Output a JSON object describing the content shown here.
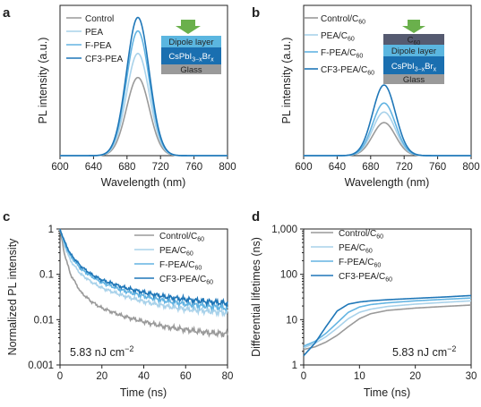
{
  "colors": {
    "control": "#9a9a9a",
    "pea": "#a9d2ea",
    "fpea": "#63b4e2",
    "cf3pea": "#1f77b8",
    "dipole_layer": "#5bb6e0",
    "perovskite": "#1a6fb0",
    "glass": "#9a9a9a",
    "c60": "#555a70",
    "arrow": "#6ab04c"
  },
  "panels": {
    "a": {
      "letter": "a",
      "xlabel": "Wavelength (nm)",
      "ylabel": "PL intensity (a.u.)",
      "xticks": [
        "600",
        "640",
        "680",
        "720",
        "760",
        "800"
      ],
      "legend": [
        "Control",
        "PEA",
        "F-PEA",
        "CF3-PEA"
      ],
      "stack": {
        "top": "Dipole layer",
        "mid_main": "CsPbI",
        "mid_sub": "3−x",
        "mid_main2": "Br",
        "mid_sub2": "x",
        "bottom": "Glass"
      }
    },
    "b": {
      "letter": "b",
      "xlabel": "Wavelength (nm)",
      "ylabel": "PL intensity (a.u.)",
      "xticks": [
        "600",
        "640",
        "680",
        "720",
        "760",
        "800"
      ],
      "legend": [
        {
          "main": "Control/C",
          "sub": "60"
        },
        {
          "main": "PEA/C",
          "sub": "60"
        },
        {
          "main": "F-PEA/C",
          "sub": "60"
        },
        {
          "main": "CF3-PEA/C",
          "sub": "60"
        }
      ],
      "stack": {
        "c60_main": "C",
        "c60_sub": "60",
        "top": "Dipole layer",
        "mid_main": "CsPbI",
        "mid_sub": "3−x",
        "mid_main2": "Br",
        "mid_sub2": "x",
        "bottom": "Glass"
      }
    },
    "c": {
      "letter": "c",
      "xlabel": "Time (ns)",
      "ylabel": "Normalized PL intensity",
      "xticks": [
        "0",
        "20",
        "40",
        "60",
        "80"
      ],
      "yticks": [
        "0.001",
        "0.01",
        "0.1",
        "1"
      ],
      "legend": [
        {
          "main": "Control/C",
          "sub": "60"
        },
        {
          "main": "PEA/C",
          "sub": "60"
        },
        {
          "main": "F-PEA/C",
          "sub": "60"
        },
        {
          "main": "CF3-PEA/C",
          "sub": "60"
        }
      ],
      "fluence_main": "5.83 nJ cm",
      "fluence_sup": "−2"
    },
    "d": {
      "letter": "d",
      "xlabel": "Time (ns)",
      "ylabel": "Differential lifetimes (ns)",
      "xticks": [
        "0",
        "10",
        "20",
        "30"
      ],
      "yticks": [
        "1",
        "10",
        "100",
        "1,000"
      ],
      "legend": [
        {
          "main": "Control/C",
          "sub": "60"
        },
        {
          "main": "PEA/C",
          "sub": "60"
        },
        {
          "main": "F-PEA/C",
          "sub": "60"
        },
        {
          "main": "CF3-PEA/C",
          "sub": "60"
        }
      ],
      "fluence_main": "5.83 nJ cm",
      "fluence_sup": "−2"
    }
  },
  "chart_data": [
    {
      "panel": "a",
      "type": "line",
      "xlabel": "Wavelength (nm)",
      "ylabel": "PL intensity (a.u.)",
      "xlim": [
        600,
        800
      ],
      "peak_wavelength": 693,
      "series": [
        {
          "name": "Control",
          "peak": 0.52,
          "fwhm": 32
        },
        {
          "name": "PEA",
          "peak": 0.68,
          "fwhm": 32
        },
        {
          "name": "F-PEA",
          "peak": 0.83,
          "fwhm": 32
        },
        {
          "name": "CF3-PEA",
          "peak": 0.92,
          "fwhm": 32
        }
      ]
    },
    {
      "panel": "b",
      "type": "line",
      "xlabel": "Wavelength (nm)",
      "ylabel": "PL intensity (a.u.)",
      "xlim": [
        600,
        800
      ],
      "peak_wavelength": 696,
      "series": [
        {
          "name": "Control/C60",
          "peak": 0.22,
          "fwhm": 32
        },
        {
          "name": "PEA/C60",
          "peak": 0.29,
          "fwhm": 32
        },
        {
          "name": "F-PEA/C60",
          "peak": 0.35,
          "fwhm": 32
        },
        {
          "name": "CF3-PEA/C60",
          "peak": 0.47,
          "fwhm": 32
        }
      ]
    },
    {
      "panel": "c",
      "type": "line",
      "xlabel": "Time (ns)",
      "ylabel": "Normalized PL intensity",
      "xlim": [
        0,
        80
      ],
      "ylim": [
        0.001,
        1
      ],
      "yscale": "log",
      "series": [
        {
          "name": "Control/C60",
          "x": [
            0,
            2,
            5,
            10,
            15,
            20,
            30,
            40,
            50,
            60,
            70,
            80
          ],
          "y": [
            1,
            0.3,
            0.1,
            0.04,
            0.025,
            0.018,
            0.012,
            0.009,
            0.007,
            0.006,
            0.0052,
            0.0048
          ]
        },
        {
          "name": "PEA/C60",
          "x": [
            0,
            2,
            5,
            10,
            15,
            20,
            30,
            40,
            50,
            60,
            70,
            80
          ],
          "y": [
            1,
            0.45,
            0.2,
            0.1,
            0.068,
            0.05,
            0.034,
            0.025,
            0.02,
            0.017,
            0.0155,
            0.014
          ]
        },
        {
          "name": "F-PEA/C60",
          "x": [
            0,
            2,
            5,
            10,
            15,
            20,
            30,
            40,
            50,
            60,
            70,
            80
          ],
          "y": [
            1,
            0.5,
            0.25,
            0.13,
            0.09,
            0.066,
            0.044,
            0.033,
            0.026,
            0.022,
            0.02,
            0.018
          ]
        },
        {
          "name": "CF3-PEA/C60",
          "x": [
            0,
            2,
            5,
            10,
            15,
            20,
            30,
            40,
            50,
            60,
            70,
            80
          ],
          "y": [
            1,
            0.55,
            0.28,
            0.15,
            0.1,
            0.075,
            0.052,
            0.04,
            0.032,
            0.028,
            0.025,
            0.023
          ]
        }
      ]
    },
    {
      "panel": "d",
      "type": "line",
      "xlabel": "Time (ns)",
      "ylabel": "Differential lifetimes (ns)",
      "xlim": [
        0,
        30
      ],
      "ylim": [
        1,
        1000
      ],
      "yscale": "log",
      "series": [
        {
          "name": "Control/C60",
          "x": [
            0,
            2,
            4,
            6,
            8,
            10,
            12,
            15,
            20,
            25,
            30
          ],
          "y": [
            2.2,
            2.5,
            3.2,
            4.5,
            7.0,
            10.5,
            13.5,
            16,
            18,
            19.5,
            21
          ]
        },
        {
          "name": "PEA/C60",
          "x": [
            0,
            2,
            4,
            6,
            8,
            10,
            12,
            15,
            20,
            25,
            30
          ],
          "y": [
            2.4,
            3.0,
            4.2,
            6.5,
            10.5,
            14.5,
            17,
            19.5,
            22,
            24,
            26
          ]
        },
        {
          "name": "F-PEA/C60",
          "x": [
            0,
            2,
            4,
            6,
            8,
            10,
            12,
            15,
            20,
            25,
            30
          ],
          "y": [
            2.6,
            3.3,
            5.0,
            8.5,
            14.5,
            19,
            21.5,
            23.5,
            26,
            28,
            30
          ]
        },
        {
          "name": "CF3-PEA/C60",
          "x": [
            0,
            2,
            4,
            6,
            8,
            10,
            12,
            15,
            20,
            25,
            30
          ],
          "y": [
            1.6,
            3.0,
            7.0,
            15.5,
            22,
            24.5,
            26,
            27.5,
            29.5,
            31.5,
            34
          ]
        }
      ]
    }
  ]
}
